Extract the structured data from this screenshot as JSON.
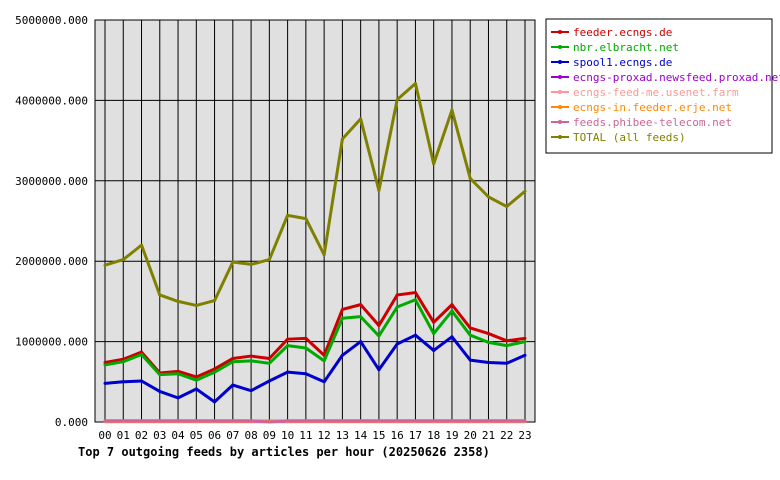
{
  "chart_data": {
    "type": "line",
    "title": "Top 7 outgoing feeds by articles per hour (20250626 2358)",
    "xlabel": "",
    "ylabel": "",
    "categories": [
      "00",
      "01",
      "02",
      "03",
      "04",
      "05",
      "06",
      "07",
      "08",
      "09",
      "10",
      "11",
      "12",
      "13",
      "14",
      "15",
      "16",
      "17",
      "18",
      "19",
      "20",
      "21",
      "22",
      "23"
    ],
    "ylim": [
      0,
      5000000
    ],
    "yticks": [
      0,
      1000000,
      2000000,
      3000000,
      4000000,
      5000000
    ],
    "ytick_labels": [
      "0.000",
      "1000000.000",
      "2000000.000",
      "3000000.000",
      "4000000.000",
      "5000000.000"
    ],
    "grid": true,
    "legend_position": "top-right",
    "series": [
      {
        "name": "feeder.ecngs.de",
        "color": "#cc0000",
        "values": [
          740000,
          780000,
          870000,
          610000,
          630000,
          560000,
          660000,
          790000,
          820000,
          790000,
          1030000,
          1040000,
          830000,
          1400000,
          1460000,
          1200000,
          1580000,
          1610000,
          1240000,
          1460000,
          1170000,
          1100000,
          1010000,
          1040000
        ]
      },
      {
        "name": "nbr.elbracht.net",
        "color": "#00aa00",
        "values": [
          710000,
          750000,
          840000,
          590000,
          600000,
          520000,
          620000,
          750000,
          760000,
          730000,
          950000,
          920000,
          760000,
          1290000,
          1310000,
          1070000,
          1430000,
          1520000,
          1100000,
          1380000,
          1080000,
          990000,
          950000,
          1000000
        ]
      },
      {
        "name": "spool1.ecngs.de",
        "color": "#0000cc",
        "values": [
          480000,
          500000,
          510000,
          380000,
          300000,
          410000,
          250000,
          460000,
          390000,
          510000,
          620000,
          600000,
          500000,
          830000,
          1000000,
          650000,
          970000,
          1080000,
          890000,
          1060000,
          770000,
          740000,
          730000,
          830000
        ]
      },
      {
        "name": "ecngs-proxad.newsfeed.proxad.net",
        "color": "#9900cc",
        "values": [
          5000,
          5000,
          5000,
          5000,
          5000,
          5000,
          5000,
          5000,
          5000,
          5000,
          5000,
          5000,
          5000,
          5000,
          5000,
          5000,
          5000,
          5000,
          5000,
          5000,
          5000,
          5000,
          5000,
          5000
        ]
      },
      {
        "name": "ecngs-feed-me.usenet.farm",
        "color": "#ff9999",
        "values": [
          8000,
          8000,
          8000,
          8000,
          8000,
          8000,
          8000,
          8000,
          8000,
          8000,
          8000,
          8000,
          8000,
          8000,
          8000,
          8000,
          8000,
          8000,
          8000,
          8000,
          8000,
          8000,
          8000,
          8000
        ]
      },
      {
        "name": "ecngs-in.feeder.erje.net",
        "color": "#ff8800",
        "values": [
          12000,
          12000,
          12000,
          12000,
          12000,
          12000,
          12000,
          12000,
          12000,
          12000,
          12000,
          12000,
          12000,
          12000,
          12000,
          12000,
          12000,
          12000,
          12000,
          12000,
          12000,
          12000,
          12000,
          12000
        ]
      },
      {
        "name": "feeds.phibee-telecom.net",
        "color": "#cc6699",
        "values": [
          15000,
          15000,
          15000,
          15000,
          15000,
          15000,
          15000,
          15000,
          15000,
          0,
          15000,
          15000,
          15000,
          15000,
          15000,
          15000,
          15000,
          15000,
          15000,
          15000,
          15000,
          15000,
          15000,
          15000
        ]
      },
      {
        "name": "TOTAL (all feeds)",
        "color": "#808000",
        "values": [
          1950000,
          2020000,
          2200000,
          1580000,
          1500000,
          1450000,
          1510000,
          1990000,
          1960000,
          2020000,
          2570000,
          2530000,
          2080000,
          3520000,
          3770000,
          2880000,
          4010000,
          4210000,
          3210000,
          3880000,
          3030000,
          2800000,
          2680000,
          2870000
        ]
      }
    ]
  }
}
